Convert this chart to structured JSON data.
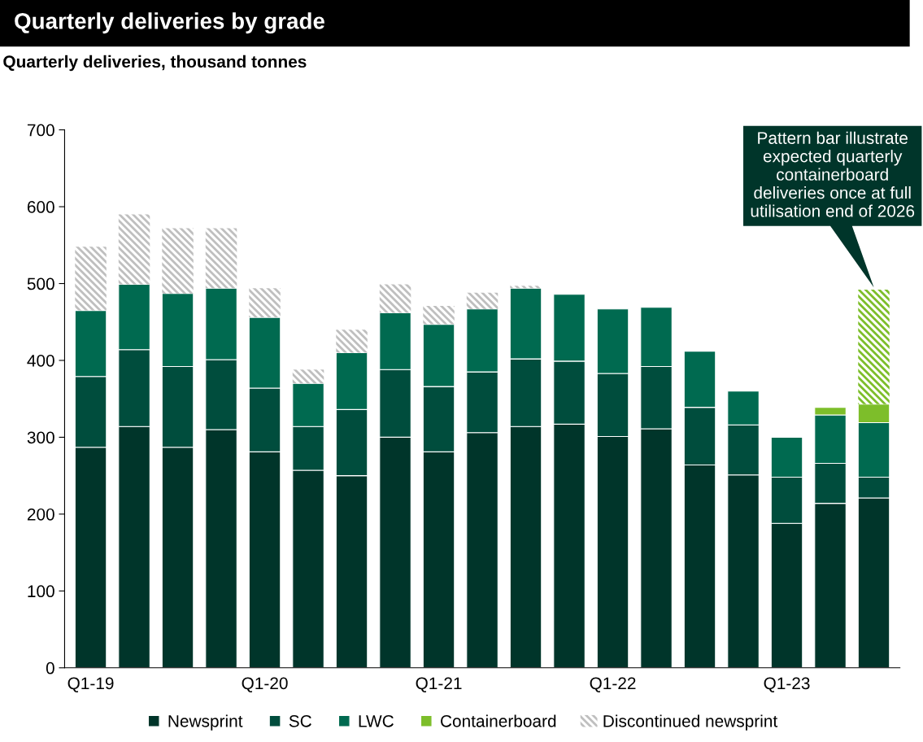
{
  "chart_data": {
    "type": "bar",
    "title": "Quarterly deliveries by grade",
    "subtitle": "Quarterly deliveries, thousand tonnes",
    "categories": [
      "Q1-19",
      null,
      null,
      null,
      "Q1-20",
      null,
      null,
      null,
      "Q1-21",
      null,
      null,
      null,
      "Q1-22",
      null,
      null,
      null,
      "Q1-23",
      null,
      null
    ],
    "stacked": true,
    "series": [
      {
        "name": "Newsprint",
        "color": "#00352a",
        "values": [
          287,
          314,
          287,
          310,
          281,
          257,
          250,
          300,
          281,
          306,
          314,
          317,
          301,
          311,
          264,
          251,
          188,
          214,
          221
        ]
      },
      {
        "name": "SC",
        "color": "#004d3d",
        "values": [
          92,
          100,
          105,
          91,
          83,
          57,
          86,
          88,
          85,
          79,
          88,
          82,
          82,
          81,
          75,
          65,
          60,
          52,
          27
        ]
      },
      {
        "name": "LWC",
        "color": "#006a50",
        "values": [
          86,
          85,
          95,
          93,
          92,
          56,
          74,
          74,
          81,
          82,
          92,
          87,
          84,
          77,
          73,
          44,
          52,
          63,
          71
        ]
      },
      {
        "name": "Containerboard",
        "color": "#7dbe2a",
        "values": [
          null,
          null,
          null,
          null,
          null,
          null,
          null,
          null,
          null,
          null,
          null,
          null,
          null,
          null,
          null,
          null,
          null,
          10,
          24
        ]
      },
      {
        "name": "Discontinued newsprint",
        "color": "#bfbfbf",
        "values": [
          83,
          91,
          85,
          78,
          38,
          18,
          30,
          37,
          24,
          21,
          3,
          null,
          null,
          null,
          null,
          null,
          null,
          null,
          null
        ]
      },
      {
        "color": "#7dbe2a",
        "values": [
          null,
          null,
          null,
          null,
          null,
          null,
          null,
          null,
          null,
          null,
          null,
          null,
          null,
          null,
          null,
          null,
          null,
          null,
          149
        ]
      }
    ],
    "ylim": [
      0,
      700
    ],
    "yticks": [
      0,
      100,
      200,
      300,
      400,
      500,
      600,
      700
    ],
    "grid": false,
    "legend": "bottom",
    "marker": "square",
    "annotations": [
      "Pattern bar illustrate expected quarterly containerboard deliveries once at full utilisation end of 2026"
    ]
  }
}
